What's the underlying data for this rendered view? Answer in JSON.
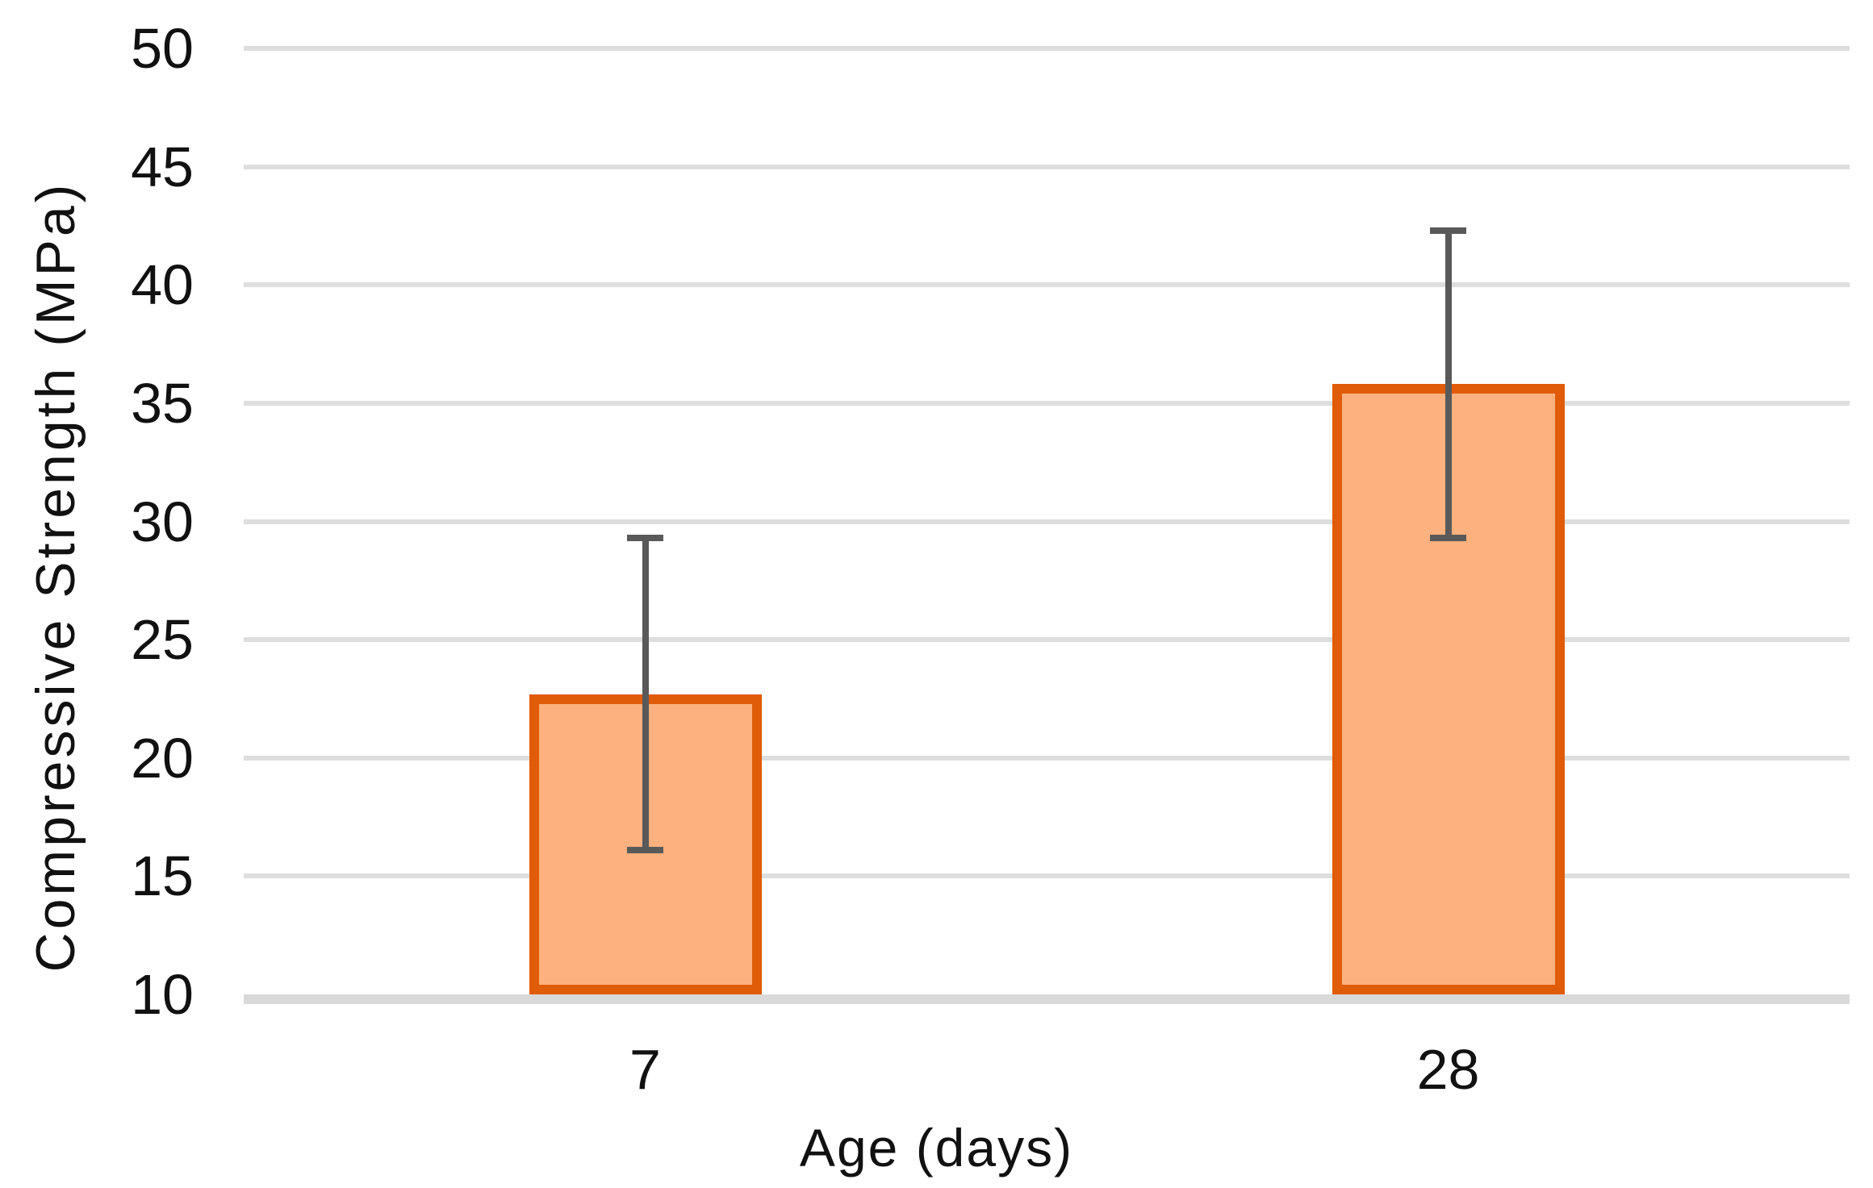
{
  "chart_data": {
    "type": "bar",
    "title": "",
    "xlabel": "Age (days)",
    "ylabel": "Compressive Strength (MPa)",
    "categories": [
      "7",
      "28"
    ],
    "values": [
      22.7,
      35.8
    ],
    "error_low": [
      16.1,
      29.3
    ],
    "error_high": [
      29.3,
      42.3
    ],
    "ylim": [
      10,
      50
    ],
    "ytick_step": 5,
    "yticks": [
      10,
      15,
      20,
      25,
      30,
      35,
      40,
      45,
      50
    ],
    "grid": true,
    "legend": "none",
    "bar_fill": "#FCB17E",
    "bar_border": "#E05C08",
    "error_color": "#595959",
    "gridline_color": "#DEDEDE",
    "axisline_color": "#D9D9D9",
    "text_color": "#111111"
  }
}
